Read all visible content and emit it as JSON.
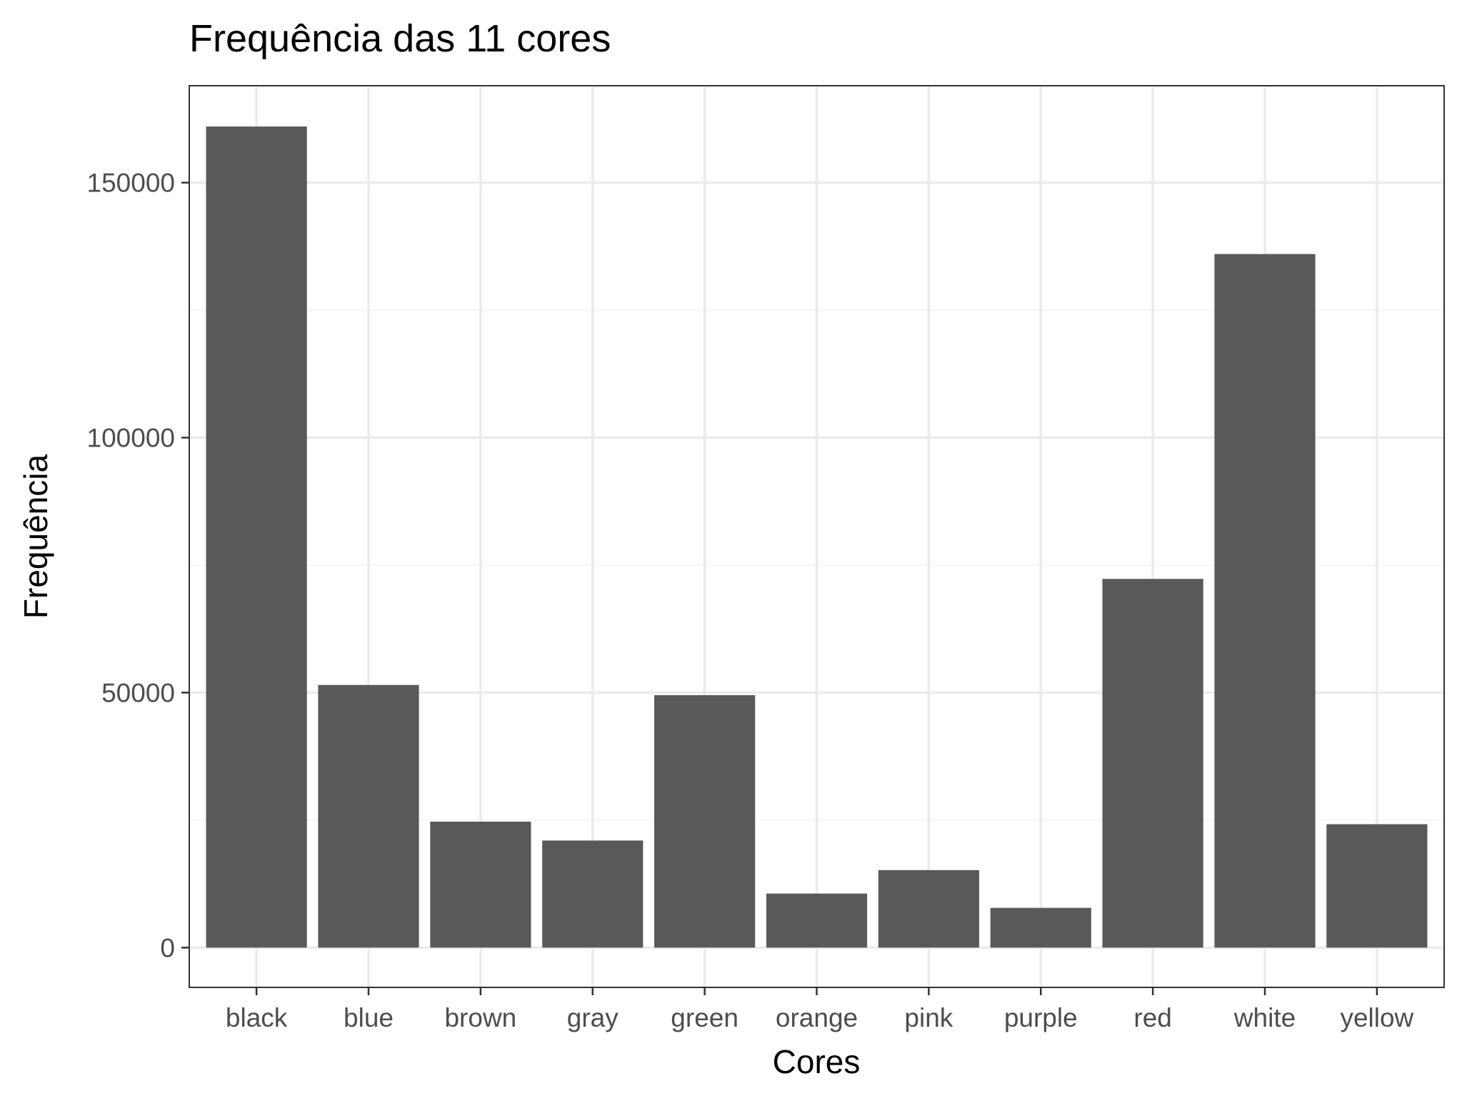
{
  "chart_data": {
    "type": "bar",
    "title": "Frequência das 11 cores",
    "xlabel": "Cores",
    "ylabel": "Frequência",
    "categories": [
      "black",
      "blue",
      "brown",
      "gray",
      "green",
      "orange",
      "pink",
      "purple",
      "red",
      "white",
      "yellow"
    ],
    "values": [
      161000,
      51500,
      24700,
      21000,
      49500,
      10600,
      15200,
      7800,
      72300,
      136000,
      24200
    ],
    "yticks": [
      0,
      50000,
      100000,
      150000
    ],
    "ylim": [
      -7800,
      169000
    ],
    "grid": true,
    "legend": "none",
    "colors": {
      "bar": "#595959",
      "panel_border": "#333333",
      "grid_major": "#ebebeb",
      "grid_minor": "#f5f5f5",
      "tick_label": "#4d4d4d",
      "title": "#000000"
    }
  }
}
